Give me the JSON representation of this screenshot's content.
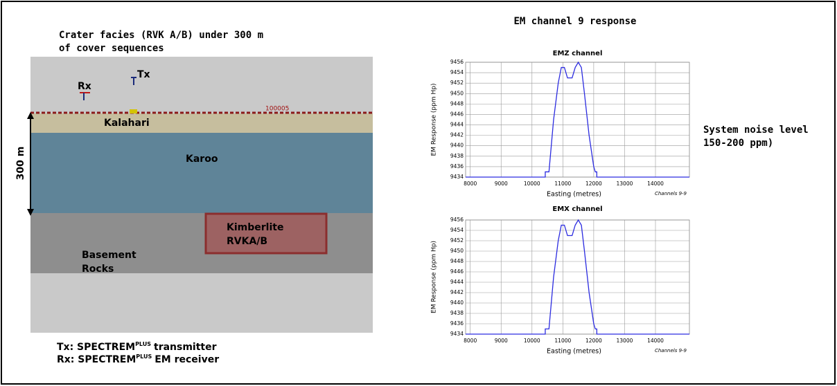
{
  "slide": {
    "title": "EM channel 9 response",
    "section_title": [
      "Crater facies (RVK A/B) under 300 m",
      "of cover sequences"
    ],
    "noise_note": [
      "System noise level",
      "150-200 ppm)"
    ],
    "tx_label": "Tx",
    "rx_label": "Rx",
    "line_label": "100005",
    "depth_label": "300 m",
    "layers": {
      "kalahari": "Kalahari",
      "karoo": "Karoo",
      "kimberlite": [
        "Kimberlite",
        "RVKA/B"
      ],
      "basement": [
        "Basement",
        "Rocks"
      ]
    },
    "legend": [
      {
        "prefix": "Tx: SPECTREM",
        "sup": "PLUS",
        "suffix": "transmitter"
      },
      {
        "prefix": "Rx: SPECTREM",
        "sup": "PLUS",
        "suffix": "EM receiver"
      }
    ]
  },
  "chart_data": [
    {
      "type": "line",
      "title": "EMZ channel",
      "x_label": "Easting (metres)",
      "y_label": "EM Response (ppm Hp)",
      "note": "Channels 9-9",
      "x": [
        7850,
        10430,
        10430,
        10550,
        10700,
        10850,
        10950,
        11050,
        11150,
        11300,
        11400,
        11500,
        11600,
        11700,
        11850,
        12000,
        12050,
        12100,
        12100,
        15100
      ],
      "series": [
        {
          "color": "#2b2be0",
          "values": [
            9434,
            9434,
            9435,
            9435,
            9445,
            9452,
            9455,
            9455,
            9453,
            9453,
            9455,
            9456,
            9455,
            9450,
            9442,
            9436,
            9435,
            9435,
            9434,
            9434
          ]
        }
      ],
      "xlim": [
        7850,
        15100
      ],
      "ylim": [
        9434,
        9456
      ],
      "xticks": [
        8000,
        9000,
        10000,
        11000,
        12000,
        13000,
        14000
      ],
      "yticks": [
        9434,
        9436,
        9438,
        9440,
        9442,
        9444,
        9446,
        9448,
        9450,
        9452,
        9454,
        9456
      ],
      "grid": true
    },
    {
      "type": "line",
      "title": "EMX channel",
      "x_label": "Easting (metres)",
      "y_label": "EM Response (ppm Hp)",
      "note": "Channels 9-9",
      "x": [
        7850,
        10430,
        10430,
        10550,
        10700,
        10850,
        10950,
        11050,
        11150,
        11300,
        11400,
        11500,
        11600,
        11700,
        11850,
        12000,
        12050,
        12100,
        12100,
        15100
      ],
      "series": [
        {
          "color": "#2b2be0",
          "values": [
            9434,
            9434,
            9435,
            9435,
            9445,
            9452,
            9455,
            9455,
            9453,
            9453,
            9455,
            9456,
            9455,
            9450,
            9442,
            9436,
            9435,
            9435,
            9434,
            9434
          ]
        }
      ],
      "xlim": [
        7850,
        15100
      ],
      "ylim": [
        9434,
        9456
      ],
      "xticks": [
        8000,
        9000,
        10000,
        11000,
        12000,
        13000,
        14000
      ],
      "yticks": [
        9434,
        9436,
        9438,
        9440,
        9442,
        9444,
        9446,
        9448,
        9450,
        9452,
        9454,
        9456
      ],
      "grid": true
    }
  ]
}
